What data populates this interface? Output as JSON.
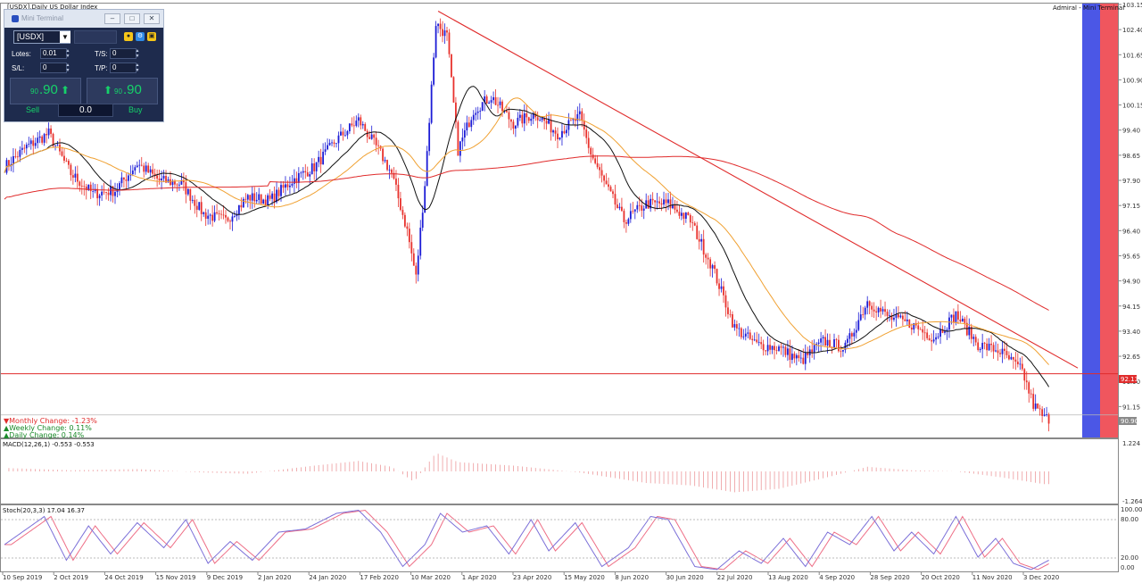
{
  "chart": {
    "symbol_title": "[USDX],Daily  US Dollar Index",
    "broker_label": "Admiral - Mini Terminal",
    "colors": {
      "bull": "#1c1cd6",
      "bear": "#e8312c",
      "sma_fast": "#111111",
      "sma_mid": "#f0a132",
      "sma_slow": "#e02b2b",
      "trendline": "#e02b2b",
      "support": "#e02b2b",
      "macd": "#e0575b",
      "stoch_main": "#7b6fd8",
      "stoch_signal": "#ee6e86",
      "blue_zone": "#4b57e6",
      "red_zone": "#f0565e"
    },
    "price_axis": [
      "103.15",
      "102.40",
      "101.65",
      "100.90",
      "100.15",
      "99.40",
      "98.65",
      "97.90",
      "97.15",
      "96.40",
      "95.65",
      "94.90",
      "94.15",
      "93.40",
      "92.65",
      "91.90",
      "91.15"
    ],
    "price_ymax": 103.15,
    "price_ymin": 90.28,
    "support_level": "92.13",
    "last_price": "90.90",
    "date_axis": [
      "10 Sep 2019",
      "2 Oct 2019",
      "24 Oct 2019",
      "15 Nov 2019",
      "9 Dec 2019",
      "2 Jan 2020",
      "24 Jan 2020",
      "17 Feb 2020",
      "10 Mar 2020",
      "1 Apr 2020",
      "23 Apr 2020",
      "15 May 2020",
      "8 Jun 2020",
      "30 Jun 2020",
      "22 Jul 2020",
      "13 Aug 2020",
      "4 Sep 2020",
      "28 Sep 2020",
      "20 Oct 2020",
      "11 Nov 2020",
      "3 Dec 2020"
    ],
    "changes": {
      "monthly": "▼Monthly Change: -1.23%",
      "weekly": "▲Weekly Change: 0.11%",
      "daily": "▲Daily Change: 0.14%"
    },
    "macd_label": "MACD(12,26,1) -0.553 -0.553",
    "macd_axis": [
      "1.224",
      "-1.264"
    ],
    "stoch_label": "Stoch(20,3,3) 17.04 16.37",
    "stoch_axis": [
      "100.00",
      "80.00",
      "20.00",
      "0.00"
    ],
    "key_prices": [
      {
        "d": 0,
        "p": 98.3
      },
      {
        "d": 10,
        "p": 98.9
      },
      {
        "d": 20,
        "p": 99.3
      },
      {
        "d": 30,
        "p": 98.1
      },
      {
        "d": 40,
        "p": 97.5
      },
      {
        "d": 50,
        "p": 97.6
      },
      {
        "d": 60,
        "p": 98.4
      },
      {
        "d": 70,
        "p": 97.9
      },
      {
        "d": 80,
        "p": 97.8
      },
      {
        "d": 90,
        "p": 96.9
      },
      {
        "d": 100,
        "p": 96.7
      },
      {
        "d": 110,
        "p": 97.4
      },
      {
        "d": 120,
        "p": 97.3
      },
      {
        "d": 130,
        "p": 97.9
      },
      {
        "d": 140,
        "p": 98.3
      },
      {
        "d": 150,
        "p": 99.1
      },
      {
        "d": 160,
        "p": 99.7
      },
      {
        "d": 170,
        "p": 98.7
      },
      {
        "d": 175,
        "p": 98.1
      },
      {
        "d": 182,
        "p": 96.4
      },
      {
        "d": 186,
        "p": 95.0
      },
      {
        "d": 190,
        "p": 97.8
      },
      {
        "d": 195,
        "p": 102.6
      },
      {
        "d": 200,
        "p": 102.2
      },
      {
        "d": 205,
        "p": 98.8
      },
      {
        "d": 212,
        "p": 100.0
      },
      {
        "d": 220,
        "p": 100.4
      },
      {
        "d": 230,
        "p": 99.6
      },
      {
        "d": 240,
        "p": 99.9
      },
      {
        "d": 250,
        "p": 99.3
      },
      {
        "d": 260,
        "p": 99.8
      },
      {
        "d": 265,
        "p": 98.7
      },
      {
        "d": 272,
        "p": 97.7
      },
      {
        "d": 280,
        "p": 96.7
      },
      {
        "d": 290,
        "p": 97.2
      },
      {
        "d": 300,
        "p": 97.2
      },
      {
        "d": 310,
        "p": 96.7
      },
      {
        "d": 320,
        "p": 95.3
      },
      {
        "d": 330,
        "p": 93.5
      },
      {
        "d": 340,
        "p": 93.0
      },
      {
        "d": 350,
        "p": 92.9
      },
      {
        "d": 360,
        "p": 92.5
      },
      {
        "d": 370,
        "p": 93.1
      },
      {
        "d": 380,
        "p": 92.9
      },
      {
        "d": 390,
        "p": 94.3
      },
      {
        "d": 400,
        "p": 93.8
      },
      {
        "d": 410,
        "p": 93.6
      },
      {
        "d": 420,
        "p": 93.2
      },
      {
        "d": 430,
        "p": 93.9
      },
      {
        "d": 440,
        "p": 93.0
      },
      {
        "d": 450,
        "p": 92.8
      },
      {
        "d": 460,
        "p": 92.2
      },
      {
        "d": 465,
        "p": 91.2
      },
      {
        "d": 470,
        "p": 90.8
      }
    ],
    "stoch_key": [
      {
        "d": 0,
        "v": 40
      },
      {
        "d": 8,
        "v": 60
      },
      {
        "d": 18,
        "v": 85
      },
      {
        "d": 28,
        "v": 15
      },
      {
        "d": 38,
        "v": 70
      },
      {
        "d": 48,
        "v": 25
      },
      {
        "d": 60,
        "v": 75
      },
      {
        "d": 72,
        "v": 35
      },
      {
        "d": 82,
        "v": 80
      },
      {
        "d": 92,
        "v": 10
      },
      {
        "d": 102,
        "v": 45
      },
      {
        "d": 112,
        "v": 15
      },
      {
        "d": 124,
        "v": 60
      },
      {
        "d": 136,
        "v": 65
      },
      {
        "d": 150,
        "v": 90
      },
      {
        "d": 160,
        "v": 95
      },
      {
        "d": 170,
        "v": 60
      },
      {
        "d": 180,
        "v": 5
      },
      {
        "d": 190,
        "v": 40
      },
      {
        "d": 197,
        "v": 90
      },
      {
        "d": 207,
        "v": 60
      },
      {
        "d": 218,
        "v": 70
      },
      {
        "d": 228,
        "v": 25
      },
      {
        "d": 238,
        "v": 80
      },
      {
        "d": 246,
        "v": 30
      },
      {
        "d": 258,
        "v": 75
      },
      {
        "d": 270,
        "v": 5
      },
      {
        "d": 282,
        "v": 35
      },
      {
        "d": 292,
        "v": 85
      },
      {
        "d": 300,
        "v": 80
      },
      {
        "d": 312,
        "v": 5
      },
      {
        "d": 322,
        "v": 0
      },
      {
        "d": 332,
        "v": 30
      },
      {
        "d": 342,
        "v": 10
      },
      {
        "d": 352,
        "v": 50
      },
      {
        "d": 362,
        "v": 5
      },
      {
        "d": 372,
        "v": 60
      },
      {
        "d": 382,
        "v": 40
      },
      {
        "d": 392,
        "v": 85
      },
      {
        "d": 402,
        "v": 30
      },
      {
        "d": 410,
        "v": 60
      },
      {
        "d": 420,
        "v": 25
      },
      {
        "d": 430,
        "v": 85
      },
      {
        "d": 440,
        "v": 20
      },
      {
        "d": 448,
        "v": 50
      },
      {
        "d": 456,
        "v": 10
      },
      {
        "d": 464,
        "v": 0
      },
      {
        "d": 472,
        "v": 15
      }
    ],
    "macd_key": [
      {
        "d": 0,
        "v": 0.15
      },
      {
        "d": 30,
        "v": 0.05
      },
      {
        "d": 60,
        "v": 0.1
      },
      {
        "d": 90,
        "v": -0.05
      },
      {
        "d": 110,
        "v": -0.1
      },
      {
        "d": 140,
        "v": 0.25
      },
      {
        "d": 160,
        "v": 0.45
      },
      {
        "d": 175,
        "v": 0.2
      },
      {
        "d": 185,
        "v": -0.45
      },
      {
        "d": 195,
        "v": 0.8
      },
      {
        "d": 205,
        "v": 0.4
      },
      {
        "d": 230,
        "v": 0.25
      },
      {
        "d": 260,
        "v": -0.05
      },
      {
        "d": 290,
        "v": -0.5
      },
      {
        "d": 310,
        "v": -0.6
      },
      {
        "d": 330,
        "v": -0.9
      },
      {
        "d": 350,
        "v": -0.75
      },
      {
        "d": 370,
        "v": -0.3
      },
      {
        "d": 390,
        "v": 0.2
      },
      {
        "d": 410,
        "v": 0.05
      },
      {
        "d": 430,
        "v": 0.0
      },
      {
        "d": 450,
        "v": -0.25
      },
      {
        "d": 470,
        "v": -0.55
      }
    ]
  },
  "mini_terminal": {
    "title": "Mini Terminal",
    "symbol": "[USDX]",
    "lots_label": "Lotes:",
    "lots_value": "0.01",
    "sl_label": "S/L:",
    "sl_value": "0",
    "ts_label": "T/S:",
    "ts_value": "0",
    "tp_label": "T/P:",
    "tp_value": "0",
    "sell_small": "90",
    "sell_big": ".90",
    "buy_small": "90",
    "buy_big": ".90",
    "sell_label": "Sell",
    "buy_label": "Buy",
    "lot_display": "0.0"
  }
}
